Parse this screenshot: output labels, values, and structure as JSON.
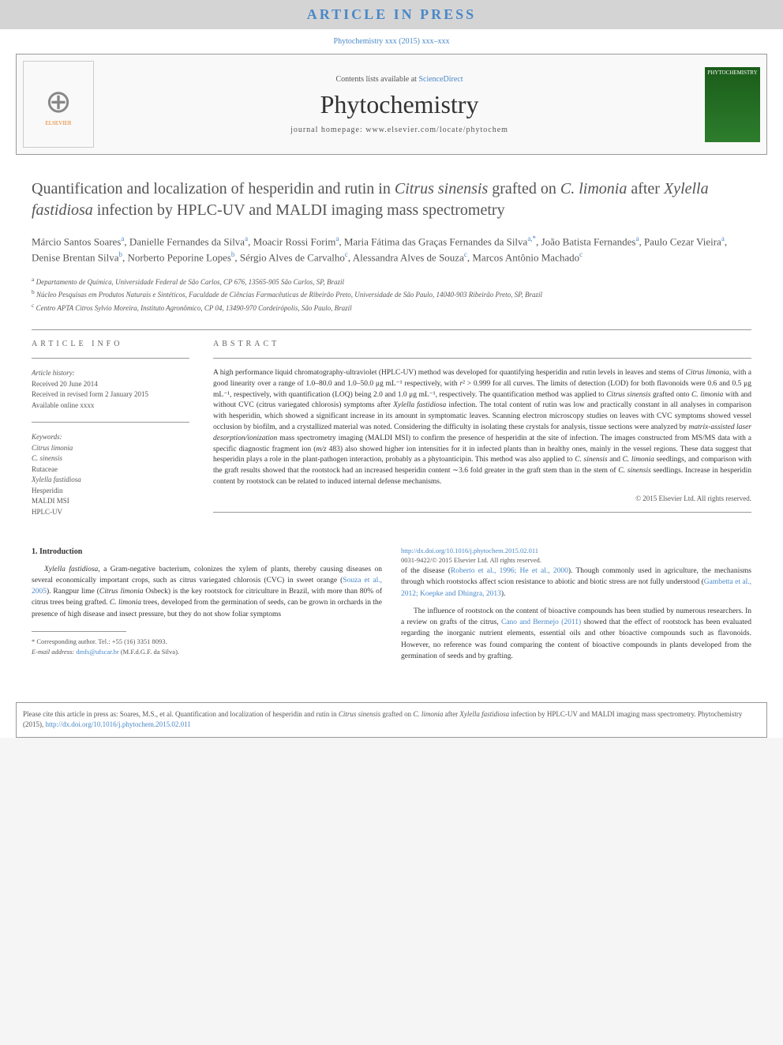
{
  "banner": "ARTICLE IN PRESS",
  "citation_top": "Phytochemistry xxx (2015) xxx–xxx",
  "header": {
    "contents_prefix": "Contents lists available at ",
    "contents_link": "ScienceDirect",
    "journal": "Phytochemistry",
    "homepage_prefix": "journal homepage: ",
    "homepage": "www.elsevier.com/locate/phytochem",
    "elsevier": "ELSEVIER",
    "cover_label": "PHYTOCHEMISTRY"
  },
  "title_parts": {
    "p1": "Quantification and localization of hesperidin and rutin in ",
    "p2": "Citrus sinensis",
    "p3": " grafted on ",
    "p4": "C. limonia",
    "p5": " after ",
    "p6": "Xylella fastidiosa",
    "p7": " infection by HPLC-UV and MALDI imaging mass spectrometry"
  },
  "authors": [
    {
      "name": "Márcio Santos Soares",
      "aff": "a"
    },
    {
      "name": "Danielle Fernandes da Silva",
      "aff": "a"
    },
    {
      "name": "Moacir Rossi Forim",
      "aff": "a"
    },
    {
      "name": "Maria Fátima das Graças Fernandes da Silva",
      "aff": "a,*"
    },
    {
      "name": "João Batista Fernandes",
      "aff": "a"
    },
    {
      "name": "Paulo Cezar Vieira",
      "aff": "a"
    },
    {
      "name": "Denise Brentan Silva",
      "aff": "b"
    },
    {
      "name": "Norberto Peporine Lopes",
      "aff": "b"
    },
    {
      "name": "Sérgio Alves de Carvalho",
      "aff": "c"
    },
    {
      "name": "Alessandra Alves de Souza",
      "aff": "c"
    },
    {
      "name": "Marcos Antônio Machado",
      "aff": "c"
    }
  ],
  "affiliations": {
    "a": "Departamento de Química, Universidade Federal de São Carlos, CP 676, 13565-905 São Carlos, SP, Brazil",
    "b": "Núcleo Pesquisas em Produtos Naturais e Sintéticos, Faculdade de Ciências Farmacêuticas de Ribeirão Preto, Universidade de São Paulo, 14040-903 Ribeirão Preto, SP, Brazil",
    "c": "Centro APTA Citros Sylvio Moreira, Instituto Agronômico, CP 04, 13490-970 Cordeirópolis, São Paulo, Brazil"
  },
  "info": {
    "head": "ARTICLE INFO",
    "history_label": "Article history:",
    "history": [
      "Received 20 June 2014",
      "Received in revised form 2 January 2015",
      "Available online xxxx"
    ],
    "keywords_label": "Keywords:",
    "keywords": [
      "Citrus limonia",
      "C. sinensis",
      "Rutaceae",
      "Xylella fastidiosa",
      "Hesperidin",
      "MALDI MSI",
      "HPLC-UV"
    ],
    "keywords_italic": [
      true,
      true,
      false,
      true,
      false,
      false,
      false
    ]
  },
  "abstract": {
    "head": "ABSTRACT",
    "text": "A high performance liquid chromatography-ultraviolet (HPLC-UV) method was developed for quantifying hesperidin and rutin levels in leaves and stems of <em>Citrus limonia</em>, with a good linearity over a range of 1.0–80.0 and 1.0–50.0 μg mL⁻¹ respectively, with <em>r</em>² > 0.999 for all curves. The limits of detection (LOD) for both flavonoids were 0.6 and 0.5 μg mL⁻¹, respectively, with quantification (LOQ) being 2.0 and 1.0 μg mL⁻¹, respectively. The quantification method was applied to <em>Citrus sinensis</em> grafted onto <em>C. limonia</em> with and without CVC (citrus variegated chlorosis) symptoms after <em>Xylella fastidiosa</em> infection. The total content of rutin was low and practically constant in all analyses in comparison with hesperidin, which showed a significant increase in its amount in symptomatic leaves. Scanning electron microscopy studies on leaves with CVC symptoms showed vessel occlusion by biofilm, and a crystallized material was noted. Considering the difficulty in isolating these crystals for analysis, tissue sections were analyzed by <em>matrix-assisted laser desorption/ionization</em> mass spectrometry imaging (MALDI MSI) to confirm the presence of hesperidin at the site of infection. The images constructed from MS/MS data with a specific diagnostic fragment ion (<em>m/z</em> 483) also showed higher ion intensities for it in infected plants than in healthy ones, mainly in the vessel regions. These data suggest that hesperidin plays a role in the plant-pathogen interaction, probably as a phytoanticipin. This method was also applied to <em>C. sinensis</em> and <em>C. limonia</em> seedlings, and comparison with the graft results showed that the rootstock had an increased hesperidin content ∼3.6 fold greater in the graft stem than in the stem of <em>C. sinensis</em> seedlings. Increase in hesperidin content by rootstock can be related to induced internal defense mechanisms.",
    "copyright": "© 2015 Elsevier Ltd. All rights reserved."
  },
  "intro": {
    "head": "1. Introduction",
    "p1": "<em>Xylella fastidiosa</em>, a Gram-negative bacterium, colonizes the xylem of plants, thereby causing diseases on several economically important crops, such as citrus variegated chlorosis (CVC) in sweet orange (<span class=\"ref\">Souza et al., 2005</span>). Rangpur lime (<em>Citrus limonia</em> Osbeck) is the key rootstock for citriculture in Brazil, with more than 80% of citrus trees being grafted. <em>C. limonia</em> trees, developed from the germination of seeds, can be grown in orchards in the presence of high disease and insect pressure, but they do not show foliar symptoms",
    "p2": "of the disease (<span class=\"ref\">Roberto et al., 1996; He et al., 2000</span>). Though commonly used in agriculture, the mechanisms through which rootstocks affect scion resistance to abiotic and biotic stress are not fully understood (<span class=\"ref\">Gambetta et al., 2012; Koepke and Dhingra, 2013</span>).",
    "p3": "The influence of rootstock on the content of bioactive compounds has been studied by numerous researchers. In a review on grafts of the citrus, <span class=\"ref\">Cano and Bermejo (2011)</span> showed that the effect of rootstock has been evaluated regarding the inorganic nutrient elements, essential oils and other bioactive compounds such as flavonoids. However, no reference was found comparing the content of bioactive compounds in plants developed from the germination of seeds and by grafting."
  },
  "footnotes": {
    "corr": "* Corresponding author. Tel.: +55 (16) 3351 8093.",
    "email_label": "E-mail address: ",
    "email": "dmfs@ufscar.br",
    "email_paren": " (M.F.d.G.F. da Silva)."
  },
  "doi": {
    "url": "http://dx.doi.org/10.1016/j.phytochem.2015.02.011",
    "issn": "0031-9422/© 2015 Elsevier Ltd. All rights reserved."
  },
  "cite_box": "Please cite this article in press as: Soares, M.S., et al. Quantification and localization of hesperidin and rutin in <em>Citrus sinensis</em> grafted on <em>C. limonia</em> after <em>Xylella fastidiosa</em> infection by HPLC-UV and MALDI imaging mass spectrometry. Phytochemistry (2015), <span class=\"ref\">http://dx.doi.org/10.1016/j.phytochem.2015.02.011</span>",
  "colors": {
    "link": "#4a88c7",
    "banner_bg": "#d4d4d4",
    "text": "#333333",
    "muted": "#555555"
  }
}
